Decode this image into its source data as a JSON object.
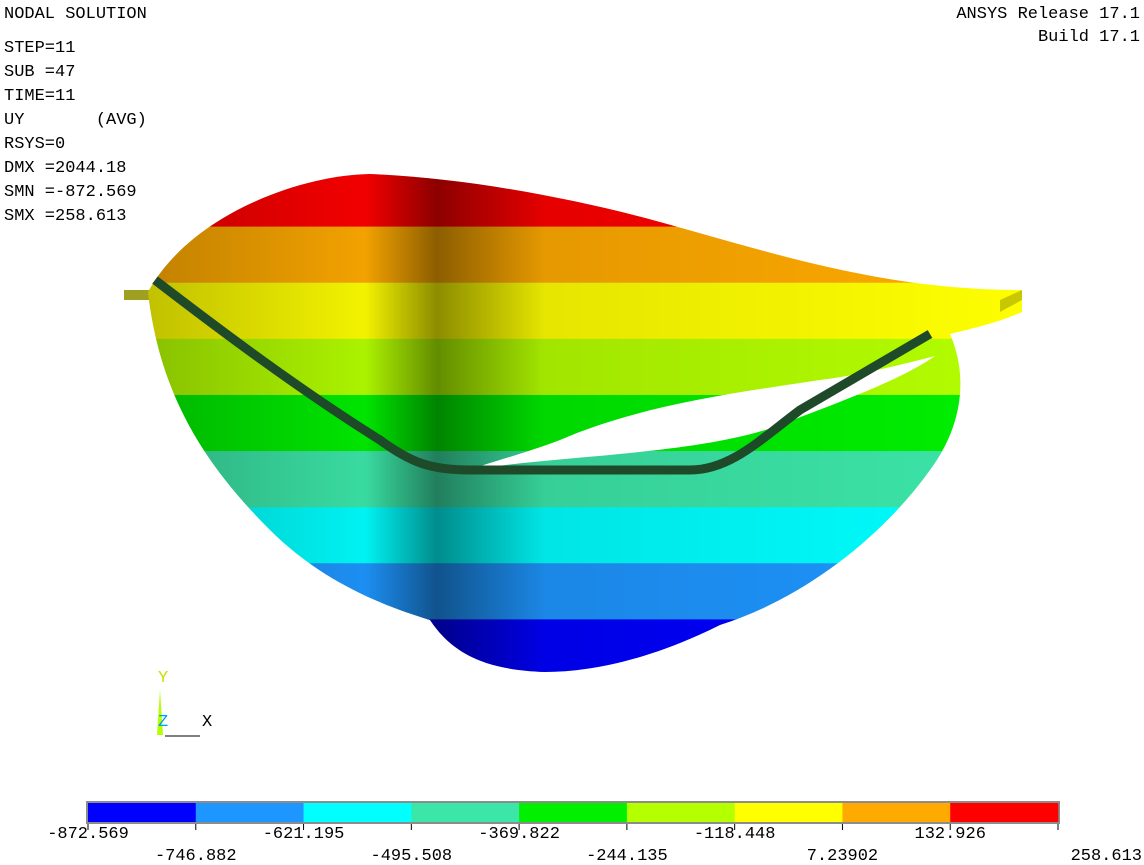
{
  "header": {
    "title": "NODAL SOLUTION",
    "info": [
      "STEP=11",
      "SUB =47",
      "TIME=11",
      "UY       (AVG)",
      "RSYS=0",
      "DMX =2044.18",
      "SMN =-872.569",
      "SMX =258.613"
    ]
  },
  "release": [
    "ANSYS Release 17.1",
    "Build 17.1"
  ],
  "triad": {
    "y": "Y",
    "z": "Z",
    "x": "X"
  },
  "legend": {
    "colors": [
      "#0000ff",
      "#1e96ff",
      "#00ffff",
      "#3ce6a8",
      "#00f000",
      "#b4ff00",
      "#ffff00",
      "#ffaa00",
      "#ff0000"
    ],
    "labels": [
      "-872.569",
      "-746.882",
      "-621.195",
      "-495.508",
      "-369.822",
      "-244.135",
      "-118.448",
      "7.23902",
      "132.926",
      "258.613"
    ]
  }
}
